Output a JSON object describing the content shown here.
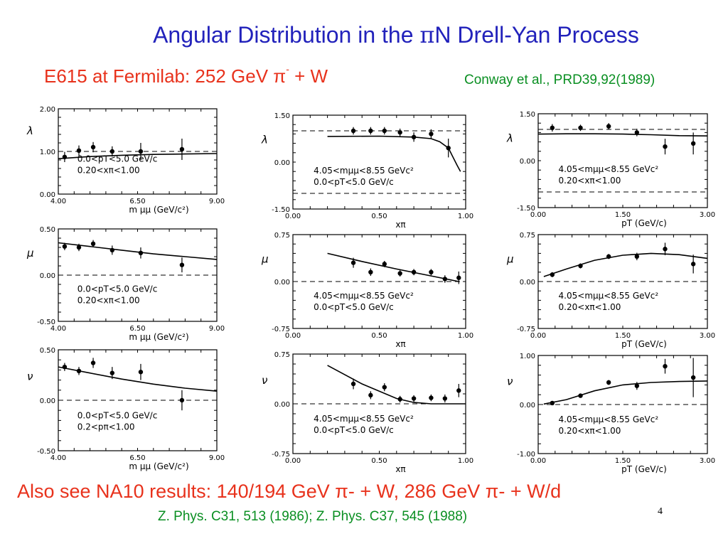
{
  "slide": {
    "title_prefix": "Angular Distribution in the ",
    "title_pi": "π",
    "title_suffix": "N Drell-Yan Process",
    "subtitle_main": "E615 at Fermilab: 252 GeV π",
    "subtitle_sup": "-",
    "subtitle_tail": " + W",
    "citation": "Conway et al., PRD39,92(1989)",
    "na10_line": "Also see NA10 results: 140/194 GeV π- + W, 286 GeV π- + W/d",
    "refs_line": "Z. Phys. C31, 513 (1986); Z. Phys. C37, 545 (1988)",
    "page_number": "4"
  },
  "colors": {
    "title": "#2222bb",
    "subtitle": "#e8321c",
    "citation": "#0a8f22",
    "ink": "#000000"
  },
  "chart_data": [
    {
      "id": "lambda-vs-mass",
      "type": "scatter",
      "ylabel": "λ",
      "xlabel": "m μμ  (GeV/c²)",
      "xlim": [
        4.0,
        9.0
      ],
      "ylim": [
        0.0,
        2.0
      ],
      "xticks": [
        "4.00",
        "6.50",
        "9.00"
      ],
      "yticks": [
        "0.00",
        "1.00",
        "2.00"
      ],
      "dashed": [
        1.0
      ],
      "annotations": [
        "0.0<pT<5.0 GeV/c",
        "0.20<xπ<1.00"
      ],
      "points": [
        [
          4.2,
          0.87,
          0.12
        ],
        [
          4.65,
          1.02,
          0.12
        ],
        [
          5.1,
          1.1,
          0.12
        ],
        [
          5.7,
          1.0,
          0.12
        ],
        [
          6.6,
          1.0,
          0.2
        ],
        [
          7.9,
          1.05,
          0.25
        ]
      ],
      "curve": [
        [
          4.0,
          0.83
        ],
        [
          5.0,
          0.88
        ],
        [
          6.0,
          0.91
        ],
        [
          7.0,
          0.93
        ],
        [
          8.0,
          0.94
        ],
        [
          9.0,
          0.95
        ]
      ]
    },
    {
      "id": "mu-vs-mass",
      "type": "scatter",
      "ylabel": "μ",
      "xlabel": "m μμ  (GeV/c²)",
      "xlim": [
        4.0,
        9.0
      ],
      "ylim": [
        -0.5,
        0.5
      ],
      "xticks": [
        "4.00",
        "6.50",
        "9.00"
      ],
      "yticks": [
        "-0.50",
        "0.00",
        "0.50"
      ],
      "dashed": [
        0.0
      ],
      "annotations": [
        "0.0<pT<5.0 GeV/c",
        "0.20<xπ<1.00"
      ],
      "points": [
        [
          4.2,
          0.31,
          0.04
        ],
        [
          4.65,
          0.3,
          0.04
        ],
        [
          5.1,
          0.34,
          0.04
        ],
        [
          5.7,
          0.27,
          0.05
        ],
        [
          6.6,
          0.24,
          0.06
        ],
        [
          7.9,
          0.11,
          0.08
        ]
      ],
      "curve": [
        [
          4.0,
          0.35
        ],
        [
          5.0,
          0.31
        ],
        [
          6.0,
          0.27
        ],
        [
          7.0,
          0.23
        ],
        [
          8.0,
          0.2
        ],
        [
          9.0,
          0.17
        ]
      ]
    },
    {
      "id": "nu-vs-mass",
      "type": "scatter",
      "ylabel": "ν",
      "xlabel": "m μμ  (GeV/c²)",
      "xlim": [
        4.0,
        9.0
      ],
      "ylim": [
        -0.5,
        0.5
      ],
      "xticks": [
        "4.00",
        "6.50",
        "9.00"
      ],
      "yticks": [
        "-0.50",
        "0.00",
        "0.50"
      ],
      "dashed": [
        0.0
      ],
      "annotations": [
        "0.0<pT<5.0 GeV/c",
        "0.2<pπ<1.00"
      ],
      "points": [
        [
          4.2,
          0.33,
          0.04
        ],
        [
          4.65,
          0.29,
          0.04
        ],
        [
          5.1,
          0.37,
          0.05
        ],
        [
          5.7,
          0.27,
          0.06
        ],
        [
          6.6,
          0.28,
          0.08
        ],
        [
          7.9,
          0.0,
          0.1
        ]
      ],
      "curve": [
        [
          4.0,
          0.33
        ],
        [
          5.0,
          0.27
        ],
        [
          6.0,
          0.21
        ],
        [
          7.0,
          0.16
        ],
        [
          8.0,
          0.12
        ],
        [
          9.0,
          0.09
        ]
      ]
    },
    {
      "id": "lambda-vs-xpi",
      "type": "scatter",
      "ylabel": "λ",
      "xlabel": "xπ",
      "xlim": [
        0.0,
        1.0
      ],
      "ylim": [
        -1.5,
        1.5
      ],
      "xticks": [
        "0.00",
        "0.50",
        "1.00"
      ],
      "yticks": [
        "-1.50",
        "0.00",
        "1.50"
      ],
      "dashed": [
        1.0,
        -1.0
      ],
      "annotations": [
        "4.05<mμμ<8.55 GeVc²",
        "0.0<pT<5.0 GeV/c"
      ],
      "points": [
        [
          0.35,
          1.0,
          0.12
        ],
        [
          0.45,
          1.0,
          0.12
        ],
        [
          0.53,
          1.0,
          0.12
        ],
        [
          0.62,
          0.95,
          0.12
        ],
        [
          0.7,
          0.8,
          0.15
        ],
        [
          0.8,
          0.9,
          0.15
        ],
        [
          0.9,
          0.45,
          0.3
        ]
      ],
      "curve": [
        [
          0.2,
          0.82
        ],
        [
          0.5,
          0.83
        ],
        [
          0.7,
          0.8
        ],
        [
          0.8,
          0.75
        ],
        [
          0.85,
          0.65
        ],
        [
          0.9,
          0.45
        ],
        [
          0.95,
          -0.1
        ],
        [
          0.97,
          -0.3
        ]
      ]
    },
    {
      "id": "mu-vs-xpi",
      "type": "scatter",
      "ylabel": "μ",
      "xlabel": "xπ",
      "xlim": [
        0.0,
        1.0
      ],
      "ylim": [
        -0.75,
        0.75
      ],
      "xticks": [
        "0.00",
        "0.50",
        "1.00"
      ],
      "yticks": [
        "-0.75",
        "0.00",
        "0.75"
      ],
      "dashed": [
        0.0
      ],
      "annotations": [
        "4.05<mμμ<8.55 GeVc²",
        "0.0<pT<5.0 GeV/c"
      ],
      "points": [
        [
          0.35,
          0.3,
          0.08
        ],
        [
          0.45,
          0.15,
          0.06
        ],
        [
          0.53,
          0.28,
          0.05
        ],
        [
          0.62,
          0.13,
          0.05
        ],
        [
          0.7,
          0.15,
          0.05
        ],
        [
          0.8,
          0.15,
          0.05
        ],
        [
          0.88,
          0.04,
          0.06
        ],
        [
          0.96,
          0.06,
          0.1
        ]
      ],
      "curve": [
        [
          0.2,
          0.45
        ],
        [
          0.4,
          0.32
        ],
        [
          0.6,
          0.2
        ],
        [
          0.8,
          0.09
        ],
        [
          0.96,
          0.0
        ]
      ]
    },
    {
      "id": "nu-vs-xpi",
      "type": "scatter",
      "ylabel": "ν",
      "xlabel": "xπ",
      "xlim": [
        0.0,
        1.0
      ],
      "ylim": [
        -0.75,
        0.75
      ],
      "xticks": [
        "0.00",
        "0.50",
        "1.00"
      ],
      "yticks": [
        "-0.75",
        "0.00",
        "0.75"
      ],
      "dashed": [
        0.0
      ],
      "annotations": [
        "4.05<mμμ<8.55 GeVc²",
        "0.0<pT<5.0 GeV/c"
      ],
      "points": [
        [
          0.35,
          0.3,
          0.08
        ],
        [
          0.45,
          0.13,
          0.06
        ],
        [
          0.53,
          0.25,
          0.06
        ],
        [
          0.62,
          0.07,
          0.05
        ],
        [
          0.7,
          0.08,
          0.05
        ],
        [
          0.8,
          0.09,
          0.05
        ],
        [
          0.88,
          0.08,
          0.06
        ],
        [
          0.96,
          0.2,
          0.1
        ]
      ],
      "curve": [
        [
          0.2,
          0.58
        ],
        [
          0.4,
          0.3
        ],
        [
          0.6,
          0.08
        ],
        [
          0.7,
          0.02
        ],
        [
          0.8,
          0.0
        ],
        [
          1.0,
          0.0
        ]
      ]
    },
    {
      "id": "lambda-vs-pt",
      "type": "scatter",
      "ylabel": "λ",
      "xlabel": "pT  (GeV/c)",
      "xlim": [
        0.0,
        3.0
      ],
      "ylim": [
        -1.5,
        1.5
      ],
      "xticks": [
        "0.00",
        "1.50",
        "3.00"
      ],
      "yticks": [
        "-1.50",
        "0.00",
        "1.50"
      ],
      "dashed": [
        1.0,
        -1.0
      ],
      "annotations": [
        "4.05<mμμ<8.55 GeVc²",
        "0.20<xπ<1.00"
      ],
      "points": [
        [
          0.25,
          1.05,
          0.12
        ],
        [
          0.75,
          1.05,
          0.1
        ],
        [
          1.25,
          1.1,
          0.1
        ],
        [
          1.75,
          0.9,
          0.12
        ],
        [
          2.25,
          0.45,
          0.25
        ],
        [
          2.75,
          0.55,
          0.35
        ]
      ],
      "curve": [
        [
          0.0,
          0.85
        ],
        [
          0.5,
          0.86
        ],
        [
          1.0,
          0.86
        ],
        [
          1.5,
          0.85
        ],
        [
          2.0,
          0.83
        ],
        [
          2.5,
          0.8
        ],
        [
          3.0,
          0.79
        ]
      ]
    },
    {
      "id": "mu-vs-pt",
      "type": "scatter",
      "ylabel": "μ",
      "xlabel": "pT  (GeV/c)",
      "xlim": [
        0.0,
        3.0
      ],
      "ylim": [
        -0.75,
        0.75
      ],
      "xticks": [
        "0.00",
        "1.50",
        "3.00"
      ],
      "yticks": [
        "-0.75",
        "0.00",
        "0.75"
      ],
      "dashed": [
        0.0
      ],
      "annotations": [
        "4.05<mμμ<8.55 GeVc²",
        "0.20<xπ<1.00"
      ],
      "points": [
        [
          0.25,
          0.11,
          0.04
        ],
        [
          0.75,
          0.25,
          0.04
        ],
        [
          1.25,
          0.4,
          0.04
        ],
        [
          1.75,
          0.4,
          0.06
        ],
        [
          2.25,
          0.52,
          0.1
        ],
        [
          2.75,
          0.28,
          0.15
        ]
      ],
      "curve": [
        [
          0.1,
          0.08
        ],
        [
          0.5,
          0.2
        ],
        [
          1.0,
          0.34
        ],
        [
          1.5,
          0.42
        ],
        [
          2.0,
          0.45
        ],
        [
          2.5,
          0.43
        ],
        [
          3.0,
          0.37
        ]
      ]
    },
    {
      "id": "nu-vs-pt",
      "type": "scatter",
      "ylabel": "ν",
      "xlabel": "pT  (GeV/c)",
      "xlim": [
        0.0,
        3.0
      ],
      "ylim": [
        -1.0,
        1.0
      ],
      "xticks": [
        "0.00",
        "1.50",
        "3.00"
      ],
      "yticks": [
        "-1.00",
        "0.00",
        "1.00"
      ],
      "dashed": [
        0.0
      ],
      "annotations": [
        "4.05<mμμ<8.55 GeVc²",
        "0.20<xπ<1.00"
      ],
      "points": [
        [
          0.25,
          0.03,
          0.03
        ],
        [
          0.75,
          0.18,
          0.04
        ],
        [
          1.25,
          0.45,
          0.05
        ],
        [
          1.75,
          0.38,
          0.08
        ],
        [
          2.25,
          0.78,
          0.15
        ],
        [
          2.75,
          0.55,
          0.4
        ]
      ],
      "curve": [
        [
          0.1,
          0.01
        ],
        [
          0.5,
          0.1
        ],
        [
          1.0,
          0.28
        ],
        [
          1.5,
          0.4
        ],
        [
          2.0,
          0.45
        ],
        [
          2.5,
          0.47
        ],
        [
          3.0,
          0.48
        ]
      ]
    }
  ]
}
